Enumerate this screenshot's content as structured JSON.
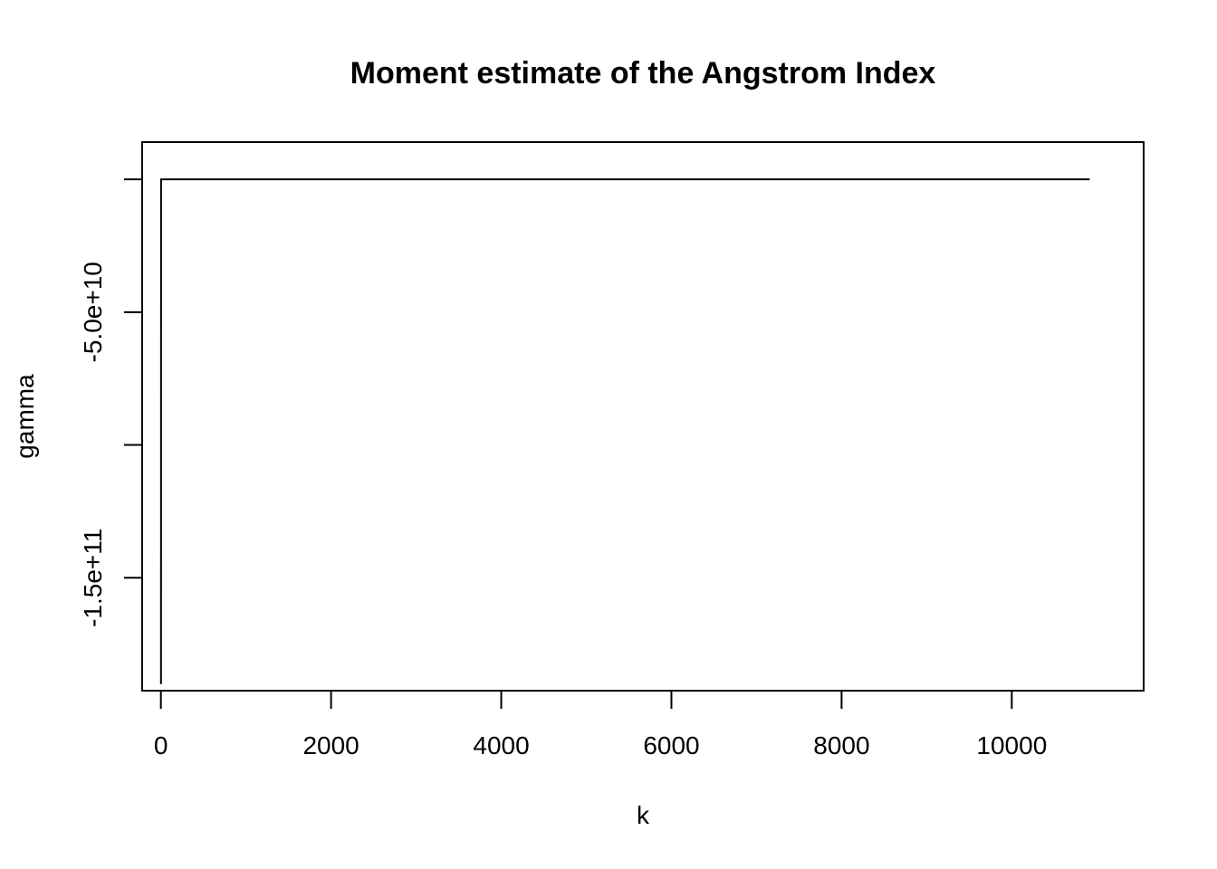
{
  "chart_data": {
    "type": "line",
    "title": "Moment estimate of the Angstrom Index",
    "xlabel": "k",
    "ylabel": "gamma",
    "xlim": [
      -220,
      11550
    ],
    "ylim": [
      -192500000000,
      14000000000
    ],
    "x_ticks": [
      {
        "value": 0,
        "label": "0"
      },
      {
        "value": 2000,
        "label": "2000"
      },
      {
        "value": 4000,
        "label": "4000"
      },
      {
        "value": 6000,
        "label": "6000"
      },
      {
        "value": 8000,
        "label": "8000"
      },
      {
        "value": 10000,
        "label": "10000"
      }
    ],
    "y_ticks": [
      {
        "value": 0,
        "label": ""
      },
      {
        "value": -50000000000,
        "label": "-5.0e+10"
      },
      {
        "value": -100000000000,
        "label": ""
      },
      {
        "value": -150000000000,
        "label": "-1.5e+11"
      }
    ],
    "series": [
      {
        "color": "#000000",
        "x": [
          1,
          2,
          3,
          10,
          100,
          1000,
          5000,
          10916
        ],
        "y": [
          -190000000000,
          0,
          0,
          0,
          0,
          0,
          0,
          0
        ]
      }
    ],
    "grid": false,
    "legend": "none"
  }
}
